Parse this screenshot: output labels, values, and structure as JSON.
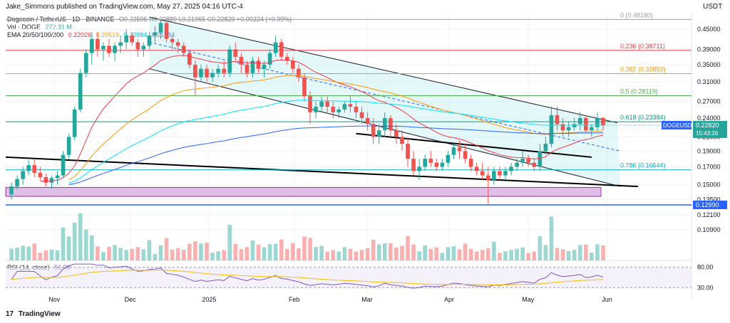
{
  "header": {
    "author_line": "Jake_Simmons published on TradingView.com, May 27, 2025 04:16 UTC-4",
    "currency": "USDT"
  },
  "legend": {
    "symbol": "Dogecoin / TetherUS · 1D · BINANCE",
    "ohlc": "O0.22596 H0.22889 L0.21965 C0.22820 +0.00224 (+0.99%)",
    "vol_label": "Vol · DOGE",
    "vol_value": "272.31 M",
    "ema_label": "EMA 20/50/100/200",
    "ema20": "0.22026",
    "ema50": "0.20519",
    "ema100": "0.20984",
    "ema200": "0.21784",
    "rsi_label": "RSI (14, close)",
    "rsi_value": "56.98"
  },
  "footer": {
    "brand": "TradingView"
  },
  "colors": {
    "up": "#26a69a",
    "down": "#ef5350",
    "ema20": "#f23645",
    "ema50": "#ff9800",
    "ema100": "#00e5ff",
    "ema200": "#2962ff",
    "rsi": "#7e57c2",
    "rsi_ma": "#f5c000"
  },
  "chart_data": {
    "type": "candlestick",
    "title": "Dogecoin / TetherUS · 1D · BINANCE",
    "price_axis_labels": [
      "0.45000",
      "0.39000",
      "0.35000",
      "0.31000",
      "0.27000",
      "0.24000",
      "0.21000",
      "0.19000",
      "0.17000",
      "0.15000",
      "0.13500",
      "0.12100",
      "0.10900"
    ],
    "price_values": [
      0.45,
      0.39,
      0.35,
      0.31,
      0.27,
      0.24,
      0.21,
      0.19,
      0.17,
      0.15,
      0.135,
      0.121,
      0.109
    ],
    "price_scale": "log",
    "time_axis_labels": [
      "Nov",
      "Dec",
      "2025",
      "Feb",
      "Mar",
      "Apr",
      "May",
      "Jun"
    ],
    "fib_levels": [
      {
        "label": "0 (0.48180)",
        "value": 0.4818,
        "color": "#9e9e9e"
      },
      {
        "label": "0.236 (0.38711)",
        "value": 0.38711,
        "color": "#f23645"
      },
      {
        "label": "0.382 (0.32853)",
        "value": 0.32853,
        "color": "#ff9800"
      },
      {
        "label": "0.5 (0.28119)",
        "value": 0.28119,
        "color": "#4caf50"
      },
      {
        "label": "0.618 (0.23384)",
        "value": 0.23384,
        "color": "#089981"
      },
      {
        "label": "0.786 (0.16644)",
        "value": 0.16644,
        "color": "#00acc1"
      },
      {
        "label": "0.12990",
        "value": 0.1299,
        "color": "#2962ff"
      }
    ],
    "current_price": {
      "symbol": "DOGEUSDT",
      "price": "0.22820",
      "countdown": "15:43:26"
    },
    "rsi_axis_labels": [
      "80.00",
      "30.00"
    ],
    "rsi_levels": [
      80,
      30
    ],
    "ohlc_series": [
      [
        0.14,
        0.152,
        0.135,
        0.148
      ],
      [
        0.148,
        0.16,
        0.145,
        0.156
      ],
      [
        0.156,
        0.17,
        0.15,
        0.165
      ],
      [
        0.165,
        0.178,
        0.16,
        0.172
      ],
      [
        0.172,
        0.18,
        0.158,
        0.163
      ],
      [
        0.163,
        0.17,
        0.155,
        0.158
      ],
      [
        0.158,
        0.162,
        0.148,
        0.152
      ],
      [
        0.152,
        0.16,
        0.145,
        0.157
      ],
      [
        0.157,
        0.165,
        0.15,
        0.16
      ],
      [
        0.16,
        0.19,
        0.158,
        0.185
      ],
      [
        0.185,
        0.215,
        0.18,
        0.21
      ],
      [
        0.21,
        0.26,
        0.205,
        0.255
      ],
      [
        0.255,
        0.34,
        0.25,
        0.33
      ],
      [
        0.33,
        0.39,
        0.32,
        0.38
      ],
      [
        0.38,
        0.44,
        0.35,
        0.42
      ],
      [
        0.42,
        0.44,
        0.37,
        0.39
      ],
      [
        0.39,
        0.41,
        0.36,
        0.4
      ],
      [
        0.4,
        0.42,
        0.37,
        0.38
      ],
      [
        0.38,
        0.41,
        0.36,
        0.4
      ],
      [
        0.4,
        0.43,
        0.38,
        0.41
      ],
      [
        0.41,
        0.45,
        0.39,
        0.43
      ],
      [
        0.43,
        0.44,
        0.4,
        0.41
      ],
      [
        0.41,
        0.42,
        0.37,
        0.39
      ],
      [
        0.39,
        0.41,
        0.37,
        0.4
      ],
      [
        0.4,
        0.44,
        0.39,
        0.43
      ],
      [
        0.43,
        0.46,
        0.41,
        0.44
      ],
      [
        0.44,
        0.48,
        0.42,
        0.47
      ],
      [
        0.47,
        0.48,
        0.41,
        0.42
      ],
      [
        0.42,
        0.43,
        0.39,
        0.41
      ],
      [
        0.41,
        0.42,
        0.38,
        0.4
      ],
      [
        0.4,
        0.41,
        0.37,
        0.38
      ],
      [
        0.38,
        0.39,
        0.34,
        0.35
      ],
      [
        0.35,
        0.36,
        0.28,
        0.32
      ],
      [
        0.32,
        0.35,
        0.31,
        0.34
      ],
      [
        0.34,
        0.35,
        0.31,
        0.32
      ],
      [
        0.32,
        0.34,
        0.31,
        0.33
      ],
      [
        0.33,
        0.35,
        0.32,
        0.34
      ],
      [
        0.34,
        0.36,
        0.32,
        0.33
      ],
      [
        0.33,
        0.4,
        0.32,
        0.39
      ],
      [
        0.39,
        0.41,
        0.36,
        0.37
      ],
      [
        0.37,
        0.38,
        0.33,
        0.35
      ],
      [
        0.35,
        0.36,
        0.32,
        0.33
      ],
      [
        0.33,
        0.37,
        0.32,
        0.36
      ],
      [
        0.36,
        0.37,
        0.33,
        0.34
      ],
      [
        0.34,
        0.36,
        0.32,
        0.35
      ],
      [
        0.35,
        0.39,
        0.34,
        0.38
      ],
      [
        0.38,
        0.43,
        0.37,
        0.41
      ],
      [
        0.41,
        0.42,
        0.36,
        0.37
      ],
      [
        0.37,
        0.38,
        0.35,
        0.36
      ],
      [
        0.36,
        0.37,
        0.33,
        0.34
      ],
      [
        0.34,
        0.35,
        0.31,
        0.32
      ],
      [
        0.32,
        0.33,
        0.27,
        0.28
      ],
      [
        0.28,
        0.29,
        0.23,
        0.25
      ],
      [
        0.25,
        0.27,
        0.24,
        0.26
      ],
      [
        0.26,
        0.28,
        0.25,
        0.27
      ],
      [
        0.27,
        0.28,
        0.25,
        0.26
      ],
      [
        0.26,
        0.27,
        0.24,
        0.25
      ],
      [
        0.25,
        0.26,
        0.24,
        0.255
      ],
      [
        0.255,
        0.27,
        0.25,
        0.265
      ],
      [
        0.265,
        0.28,
        0.25,
        0.26
      ],
      [
        0.26,
        0.27,
        0.24,
        0.25
      ],
      [
        0.25,
        0.26,
        0.23,
        0.24
      ],
      [
        0.24,
        0.25,
        0.22,
        0.23
      ],
      [
        0.23,
        0.24,
        0.2,
        0.21
      ],
      [
        0.21,
        0.23,
        0.2,
        0.22
      ],
      [
        0.22,
        0.25,
        0.21,
        0.24
      ],
      [
        0.24,
        0.245,
        0.21,
        0.22
      ],
      [
        0.22,
        0.23,
        0.2,
        0.21
      ],
      [
        0.21,
        0.22,
        0.19,
        0.2
      ],
      [
        0.2,
        0.21,
        0.17,
        0.18
      ],
      [
        0.18,
        0.19,
        0.16,
        0.165
      ],
      [
        0.165,
        0.18,
        0.155,
        0.17
      ],
      [
        0.17,
        0.185,
        0.165,
        0.18
      ],
      [
        0.18,
        0.19,
        0.17,
        0.175
      ],
      [
        0.175,
        0.18,
        0.165,
        0.17
      ],
      [
        0.17,
        0.18,
        0.165,
        0.175
      ],
      [
        0.175,
        0.19,
        0.17,
        0.185
      ],
      [
        0.185,
        0.2,
        0.18,
        0.195
      ],
      [
        0.195,
        0.205,
        0.18,
        0.19
      ],
      [
        0.19,
        0.2,
        0.175,
        0.18
      ],
      [
        0.18,
        0.185,
        0.165,
        0.17
      ],
      [
        0.17,
        0.175,
        0.16,
        0.165
      ],
      [
        0.165,
        0.175,
        0.155,
        0.16
      ],
      [
        0.16,
        0.17,
        0.13,
        0.155
      ],
      [
        0.155,
        0.17,
        0.15,
        0.165
      ],
      [
        0.165,
        0.17,
        0.155,
        0.16
      ],
      [
        0.16,
        0.17,
        0.155,
        0.165
      ],
      [
        0.165,
        0.175,
        0.16,
        0.17
      ],
      [
        0.17,
        0.18,
        0.165,
        0.175
      ],
      [
        0.175,
        0.19,
        0.17,
        0.18
      ],
      [
        0.18,
        0.185,
        0.17,
        0.175
      ],
      [
        0.175,
        0.18,
        0.165,
        0.17
      ],
      [
        0.17,
        0.2,
        0.165,
        0.19
      ],
      [
        0.19,
        0.21,
        0.185,
        0.2
      ],
      [
        0.2,
        0.26,
        0.195,
        0.245
      ],
      [
        0.245,
        0.26,
        0.22,
        0.23
      ],
      [
        0.23,
        0.24,
        0.21,
        0.22
      ],
      [
        0.22,
        0.235,
        0.21,
        0.225
      ],
      [
        0.225,
        0.24,
        0.22,
        0.23
      ],
      [
        0.23,
        0.25,
        0.22,
        0.24
      ],
      [
        0.24,
        0.245,
        0.215,
        0.22
      ],
      [
        0.22,
        0.23,
        0.21,
        0.225
      ],
      [
        0.225,
        0.25,
        0.22,
        0.24
      ],
      [
        0.24,
        0.242,
        0.22,
        0.228
      ]
    ]
  }
}
